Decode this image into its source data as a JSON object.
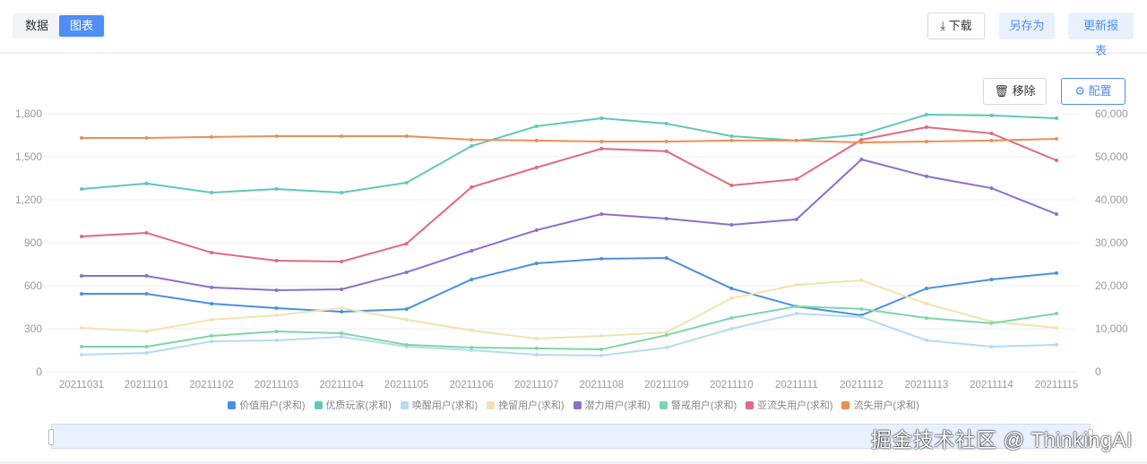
{
  "toolbar": {
    "tabs": [
      {
        "label": "数据",
        "active": false
      },
      {
        "label": "图表",
        "active": true
      }
    ],
    "download": "下载",
    "save_as": "另存为",
    "update": "更新报表",
    "download_icon": "download-icon"
  },
  "chart_toolbar": {
    "remove": "移除",
    "config": "配置",
    "remove_icon": "trash-icon",
    "config_icon": "gear-icon"
  },
  "chart_data": {
    "type": "line",
    "categories": [
      "20211031",
      "20211101",
      "20211102",
      "20211103",
      "20211104",
      "20211105",
      "20211106",
      "20211107",
      "20211108",
      "20211109",
      "20211110",
      "20211111",
      "20211112",
      "20211113",
      "20211114",
      "20211115"
    ],
    "y_left": {
      "ticks": [
        "0",
        "300",
        "600",
        "900",
        "1,200",
        "1,500",
        "1,800"
      ],
      "range": [
        0,
        1800
      ]
    },
    "y_right": {
      "ticks": [
        "0",
        "10,000",
        "20,000",
        "30,000",
        "40,000",
        "50,000",
        "60,000"
      ],
      "range": [
        0,
        60000
      ]
    },
    "grid": true,
    "legend_position": "bottom",
    "series": [
      {
        "name": "价值用户(求和)",
        "color": "#4a90e2",
        "values": [
          544,
          544,
          475,
          444,
          419,
          437,
          644,
          756,
          788,
          794,
          581,
          456,
          394,
          581,
          644,
          688
        ]
      },
      {
        "name": "优质玩家(求和)",
        "color": "#5ec8b8",
        "values": [
          1275,
          1313,
          1250,
          1275,
          1250,
          1319,
          1575,
          1713,
          1769,
          1731,
          1644,
          1613,
          1656,
          1794,
          1788,
          1769
        ]
      },
      {
        "name": "唤醒用户(求和)",
        "color": "#b5dcf0",
        "values": [
          119,
          131,
          212,
          219,
          244,
          175,
          150,
          119,
          113,
          169,
          300,
          406,
          381,
          219,
          175,
          188
        ]
      },
      {
        "name": "挽留用户(求和)",
        "color": "#f1e3b0",
        "values": [
          306,
          281,
          363,
          394,
          444,
          363,
          288,
          231,
          250,
          275,
          513,
          606,
          638,
          475,
          350,
          306
        ]
      },
      {
        "name": "潜力用户(求和)",
        "color": "#8c70c8",
        "values": [
          669,
          669,
          588,
          569,
          575,
          694,
          844,
          988,
          1100,
          1069,
          1025,
          1063,
          1481,
          1363,
          1281,
          1100
        ]
      },
      {
        "name": "警戒用户(求和)",
        "color": "#7fd6a8",
        "values": [
          175,
          175,
          250,
          281,
          269,
          188,
          169,
          163,
          156,
          256,
          375,
          456,
          438,
          375,
          338,
          406
        ]
      },
      {
        "name": "亚流失用户(求和)",
        "color": "#e06a80",
        "values": [
          944,
          969,
          831,
          775,
          769,
          894,
          1288,
          1425,
          1556,
          1538,
          1300,
          1344,
          1619,
          1706,
          1663,
          1475
        ]
      },
      {
        "name": "流失用户(求和)",
        "color": "#ec8f55",
        "values": [
          1631,
          1631,
          1638,
          1644,
          1644,
          1644,
          1619,
          1613,
          1606,
          1606,
          1613,
          1613,
          1600,
          1606,
          1613,
          1625
        ]
      }
    ]
  },
  "watermark": "掘金技术社区 @ ThinkingAI"
}
